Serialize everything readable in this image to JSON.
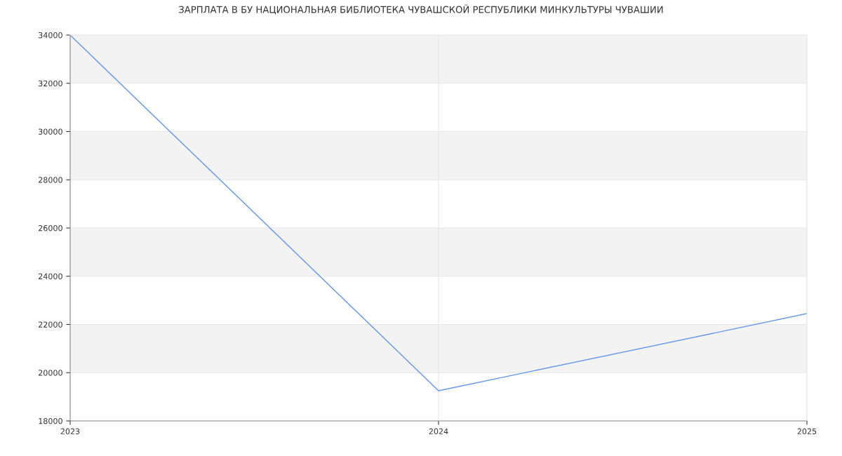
{
  "chart_data": {
    "type": "line",
    "title": "ЗАРПЛАТА В БУ НАЦИОНАЛЬНАЯ БИБЛИОТЕКА ЧУВАШСКОЙ РЕСПУБЛИКИ МИНКУЛЬТУРЫ ЧУВАШИИ",
    "x": [
      2023,
      2024,
      2025
    ],
    "series": [
      {
        "color": "#6495ed",
        "values": [
          34000,
          19250,
          22450
        ]
      }
    ],
    "xlim": [
      2023,
      2025
    ],
    "xticks": [
      2023,
      2024,
      2025
    ],
    "ylim": [
      18000,
      34000
    ],
    "yticks": [
      18000,
      20000,
      22000,
      24000,
      26000,
      28000,
      30000,
      32000,
      34000
    ],
    "grid": true,
    "legend": false,
    "marker": "none",
    "line_style": "solid"
  }
}
